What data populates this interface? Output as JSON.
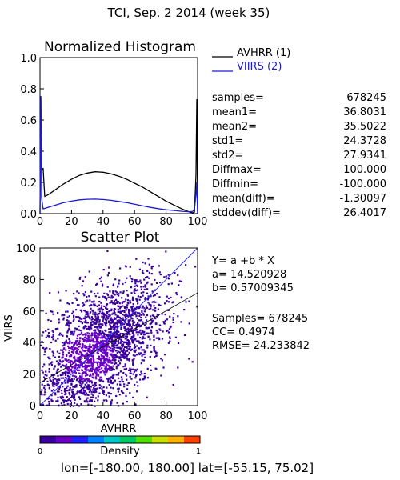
{
  "header": {
    "title": "TCI,  Sep. 2 2014 (week 35)"
  },
  "histogram_panel": {
    "title": "Normalized Histogram",
    "legend": [
      {
        "label": "AVHRR (1)",
        "color": "#000000"
      },
      {
        "label": "VIIRS (2)",
        "color": "#1c1cd2"
      }
    ],
    "stats": [
      {
        "name": "samples=",
        "value": "678245"
      },
      {
        "name": "mean1=",
        "value": "36.8031"
      },
      {
        "name": "mean2=",
        "value": "35.5022"
      },
      {
        "name": "std1=",
        "value": "24.3728"
      },
      {
        "name": "std2=",
        "value": "27.9341"
      },
      {
        "name": "Diffmax=",
        "value": "100.000"
      },
      {
        "name": "Diffmin=",
        "value": "-100.000"
      },
      {
        "name": "mean(diff)=",
        "value": "-1.30097"
      },
      {
        "name": "stddev(diff)=",
        "value": "26.4017"
      }
    ]
  },
  "scatter_panel": {
    "title": "Scatter Plot",
    "xlabel": "AVHRR",
    "ylabel": "VIIRS",
    "regression_text": [
      {
        "id": "eq",
        "text": "Y= a +b * X"
      },
      {
        "id": "a",
        "text": "a= 14.520928"
      },
      {
        "id": "b",
        "text": "b= 0.57009345"
      },
      {
        "id": "n",
        "text": "Samples= 678245"
      },
      {
        "id": "cc",
        "text": "CC=  0.4974"
      },
      {
        "id": "rmse",
        "text": "RMSE= 24.233842"
      }
    ]
  },
  "colorbar": {
    "label": "Density",
    "min_label": "0",
    "max_label": "1",
    "colors": [
      "#3c00a0",
      "#6a00c8",
      "#2020ff",
      "#0080ff",
      "#00c8c8",
      "#00c864",
      "#50e000",
      "#c8e000",
      "#ffb000",
      "#ff4000"
    ]
  },
  "footer": {
    "domain_text": "lon=[-180.00, 180.00] lat=[-55.15, 75.02]"
  },
  "chart_data": [
    {
      "type": "line",
      "title": "Normalized Histogram",
      "xlabel": "",
      "ylabel": "",
      "xlim": [
        0,
        100
      ],
      "ylim": [
        0,
        1
      ],
      "x_ticks": [
        0,
        20,
        40,
        60,
        80,
        100
      ],
      "y_ticks": [
        "0.0",
        "0.2",
        "0.4",
        "0.6",
        "0.8",
        "1.0"
      ],
      "series": [
        {
          "name": "AVHRR (1)",
          "color": "#000000",
          "x": [
            0,
            0.5,
            1,
            2,
            3,
            5,
            10,
            15,
            20,
            25,
            30,
            35,
            40,
            45,
            50,
            55,
            60,
            65,
            70,
            75,
            80,
            85,
            90,
            95,
            97,
            98,
            99,
            99.5,
            100
          ],
          "y": [
            0.0,
            0.75,
            0.28,
            0.29,
            0.11,
            0.12,
            0.155,
            0.19,
            0.22,
            0.245,
            0.26,
            0.268,
            0.265,
            0.255,
            0.24,
            0.22,
            0.195,
            0.17,
            0.14,
            0.11,
            0.08,
            0.055,
            0.03,
            0.01,
            0.005,
            0.01,
            0.25,
            0.73,
            0.0
          ]
        },
        {
          "name": "VIIRS (2)",
          "color": "#1c1cd2",
          "x": [
            0,
            0.5,
            1,
            2,
            5,
            10,
            15,
            20,
            25,
            30,
            35,
            40,
            45,
            50,
            55,
            60,
            65,
            70,
            75,
            80,
            85,
            90,
            95,
            97,
            98,
            99,
            99.5,
            100
          ],
          "y": [
            0.0,
            0.75,
            0.1,
            0.03,
            0.04,
            0.055,
            0.07,
            0.08,
            0.088,
            0.092,
            0.093,
            0.09,
            0.085,
            0.078,
            0.07,
            0.06,
            0.05,
            0.04,
            0.032,
            0.025,
            0.02,
            0.015,
            0.012,
            0.015,
            0.03,
            0.12,
            0.2,
            0.0
          ]
        }
      ]
    },
    {
      "type": "scatter",
      "title": "Scatter Plot",
      "xlabel": "AVHRR",
      "ylabel": "VIIRS",
      "xlim": [
        0,
        100
      ],
      "ylim": [
        0,
        100
      ],
      "x_ticks": [
        0,
        20,
        40,
        60,
        80,
        100
      ],
      "y_ticks": [
        0,
        20,
        40,
        60,
        80,
        100
      ],
      "samples": 678245,
      "correlation": 0.4974,
      "regression": {
        "a": 14.520928,
        "b": 0.57009345
      },
      "one_to_one_line": [
        [
          0,
          0
        ],
        [
          100,
          100
        ]
      ],
      "fit_line": [
        [
          0,
          14.520928
        ],
        [
          100,
          71.530273
        ]
      ]
    }
  ]
}
